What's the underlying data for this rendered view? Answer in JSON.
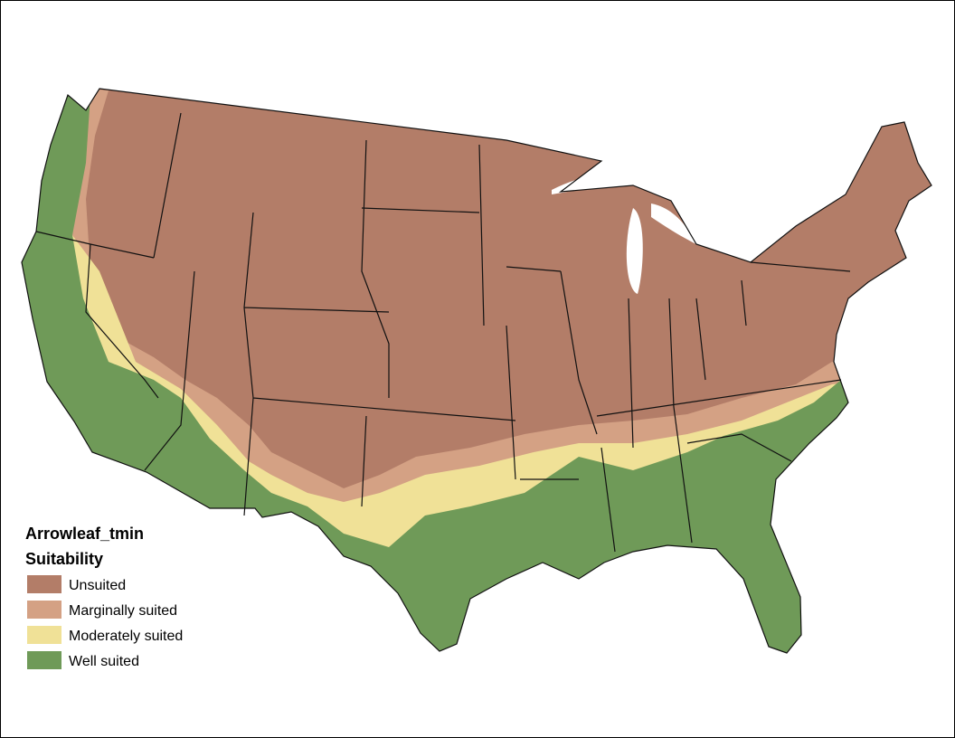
{
  "legend": {
    "title": "Arrowleaf_tmin",
    "subtitle": "Suitability",
    "items": [
      {
        "label": "Unsuited",
        "color": "#b37d68"
      },
      {
        "label": "Marginally suited",
        "color": "#d4a184"
      },
      {
        "label": "Moderately suited",
        "color": "#f0e197"
      },
      {
        "label": "Well suited",
        "color": "#6f9a58"
      }
    ]
  }
}
